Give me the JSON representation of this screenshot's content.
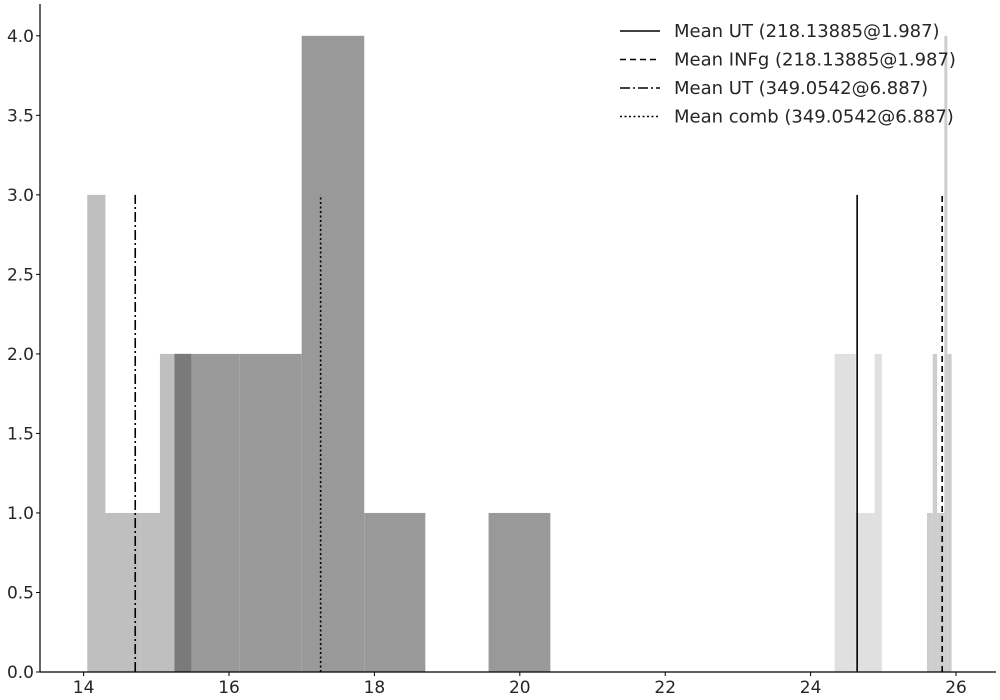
{
  "chart_data": {
    "type": "bar",
    "title": "",
    "xlabel": "",
    "ylabel": "",
    "xlim": [
      13.4,
      26.55
    ],
    "ylim": [
      0,
      4.2
    ],
    "grid": false,
    "legend_placement": "top-right",
    "x_ticks": [
      "14",
      "16",
      "18",
      "20",
      "22",
      "24",
      "26"
    ],
    "y_ticks": [
      "0.0",
      "0.5",
      "1.0",
      "1.5",
      "2.0",
      "2.5",
      "3.0",
      "3.5",
      "4.0"
    ],
    "histograms": [
      {
        "color": "#b4b4b4",
        "bins": [
          {
            "x0": 14.05,
            "x1": 14.3,
            "count": 3
          },
          {
            "x0": 14.3,
            "x1": 14.78,
            "count": 1
          },
          {
            "x0": 14.78,
            "x1": 15.05,
            "count": 1
          },
          {
            "x0": 15.05,
            "x1": 15.25,
            "count": 2
          },
          {
            "x0": 15.25,
            "x1": 15.48,
            "count": 2
          }
        ]
      },
      {
        "color": "#999999",
        "bins": [
          {
            "x0": 15.25,
            "x1": 16.14,
            "count": 2
          },
          {
            "x0": 16.14,
            "x1": 17.0,
            "count": 2
          },
          {
            "x0": 17.0,
            "x1": 17.86,
            "count": 4
          },
          {
            "x0": 17.86,
            "x1": 18.7,
            "count": 1
          },
          {
            "x0": 19.57,
            "x1": 20.42,
            "count": 1
          }
        ]
      },
      {
        "color": "#e0e0e0",
        "bins": [
          {
            "x0": 24.33,
            "x1": 24.62,
            "count": 2
          },
          {
            "x0": 24.62,
            "x1": 24.88,
            "count": 1
          },
          {
            "x0": 24.88,
            "x1": 24.98,
            "count": 2
          }
        ]
      },
      {
        "color": "#cdcdcd",
        "bins": [
          {
            "x0": 25.6,
            "x1": 25.68,
            "count": 1
          },
          {
            "x0": 25.68,
            "x1": 25.74,
            "count": 2
          },
          {
            "x0": 25.74,
            "x1": 25.84,
            "count": 1
          },
          {
            "x0": 25.84,
            "x1": 25.88,
            "count": 4
          },
          {
            "x0": 25.88,
            "x1": 25.94,
            "count": 2
          }
        ]
      }
    ],
    "series": [
      {
        "name": "Mean UT (218.13885@1.987)",
        "x": 24.64,
        "ymax": 3,
        "dash": "solid"
      },
      {
        "name": "Mean INFg (218.13885@1.987)",
        "x": 25.81,
        "ymax": 3,
        "dash": "dashed"
      },
      {
        "name": "Mean UT (349.0542@6.887)",
        "x": 14.71,
        "ymax": 3,
        "dash": "dashdot"
      },
      {
        "name": "Mean comb (349.0542@6.887)",
        "x": 17.26,
        "ymax": 3,
        "dash": "dotted"
      }
    ]
  }
}
